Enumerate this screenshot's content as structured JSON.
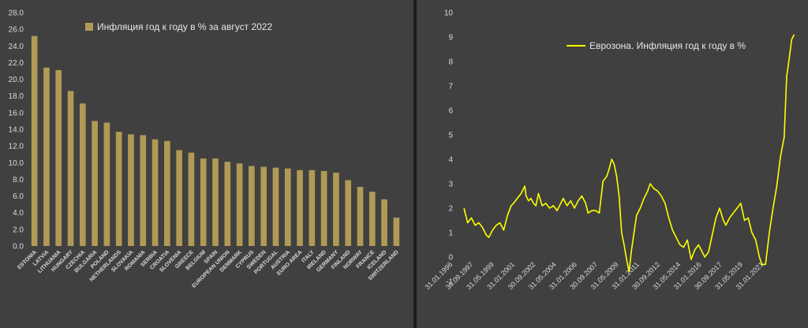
{
  "chart_data": [
    {
      "type": "bar",
      "legend": "Инфляция год к году в % за август 2022",
      "legend_position": "top-center",
      "color": "#b09a55",
      "ylim": [
        0,
        28
      ],
      "yticks": [
        "0.0",
        "2.0",
        "4.0",
        "6.0",
        "8.0",
        "10.0",
        "12.0",
        "14.0",
        "16.0",
        "18.0",
        "20.0",
        "22.0",
        "24.0",
        "26.0",
        "28.0"
      ],
      "grid": false,
      "categories": [
        "ESTONIA",
        "LATVIA",
        "LITHUANIA",
        "HUNGARY",
        "CZECHIA",
        "BULGARIA",
        "POLAND",
        "NETHERLANDS",
        "SLOVAKIA",
        "ROMANIA",
        "SERBIA",
        "CROATIA",
        "SLOVENIA",
        "GREECE",
        "BELGIUM",
        "SPAIN",
        "EUROPEAN UNION",
        "DENMARK",
        "CYPRUS",
        "SWEDEN",
        "PORTUGAL",
        "AUSTRIA",
        "EURO AREA",
        "ITALY",
        "IRELAND",
        "GERMANY",
        "FINLAND",
        "NORWAY",
        "FRANCE",
        "ICELAND",
        "SWITZERLAND"
      ],
      "values": [
        25.2,
        21.4,
        21.1,
        18.6,
        17.1,
        15.0,
        14.8,
        13.7,
        13.4,
        13.3,
        12.8,
        12.6,
        11.5,
        11.2,
        10.5,
        10.5,
        10.1,
        9.9,
        9.6,
        9.5,
        9.4,
        9.3,
        9.1,
        9.1,
        9.0,
        8.8,
        7.9,
        7.1,
        6.5,
        5.6,
        3.4
      ]
    },
    {
      "type": "line",
      "legend": "Еврозона. Инфляция год к году в %",
      "legend_position": "top-left",
      "color": "#ffff00",
      "ylim": [
        -1,
        10
      ],
      "yticks": [
        "-1",
        "0",
        "1",
        "2",
        "3",
        "4",
        "5",
        "6",
        "7",
        "8",
        "9",
        "10"
      ],
      "grid": false,
      "xlim": [
        1996.0,
        2022.7
      ],
      "xticks": [
        "31.01.1996",
        "30.09.1997",
        "31.05.1999",
        "31.01.2001",
        "30.09.2002",
        "31.05.2004",
        "31.01.2006",
        "30.09.2007",
        "31.05.2009",
        "31.01.2011",
        "30.09.2012",
        "31.05.2014",
        "31.01.2016",
        "30.09.2017",
        "31.05.2019",
        "31.01.2021"
      ],
      "x": [
        1996.0,
        1996.3,
        1996.6,
        1996.9,
        1997.2,
        1997.5,
        1997.8,
        1998.0,
        1998.3,
        1998.6,
        1998.9,
        1999.2,
        1999.5,
        1999.8,
        2000.0,
        2000.3,
        2000.6,
        2000.9,
        2001.0,
        2001.2,
        2001.4,
        2001.6,
        2001.8,
        2002.0,
        2002.3,
        2002.6,
        2002.9,
        2003.2,
        2003.5,
        2003.8,
        2004.0,
        2004.3,
        2004.6,
        2004.9,
        2005.2,
        2005.5,
        2005.8,
        2006.0,
        2006.3,
        2006.6,
        2006.9,
        2007.2,
        2007.5,
        2007.7,
        2007.9,
        2008.1,
        2008.3,
        2008.5,
        2008.7,
        2008.9,
        2009.1,
        2009.3,
        2009.5,
        2009.7,
        2009.9,
        2010.2,
        2010.5,
        2010.8,
        2011.0,
        2011.3,
        2011.6,
        2011.9,
        2012.2,
        2012.5,
        2012.8,
        2013.1,
        2013.4,
        2013.7,
        2014.0,
        2014.3,
        2014.6,
        2014.9,
        2015.1,
        2015.4,
        2015.7,
        2016.0,
        2016.3,
        2016.6,
        2016.9,
        2017.1,
        2017.4,
        2017.7,
        2018.0,
        2018.3,
        2018.6,
        2018.9,
        2019.2,
        2019.5,
        2019.8,
        2020.0,
        2020.3,
        2020.6,
        2020.9,
        2021.2,
        2021.5,
        2021.8,
        2022.0,
        2022.2,
        2022.4,
        2022.6
      ],
      "y": [
        2.0,
        1.4,
        1.6,
        1.3,
        1.4,
        1.2,
        0.9,
        0.8,
        1.1,
        1.3,
        1.4,
        1.1,
        1.7,
        2.1,
        2.2,
        2.4,
        2.6,
        2.9,
        2.5,
        2.3,
        2.4,
        2.2,
        2.1,
        2.6,
        2.1,
        2.2,
        2.0,
        2.1,
        1.9,
        2.2,
        2.4,
        2.1,
        2.3,
        2.0,
        2.3,
        2.5,
        2.2,
        1.8,
        1.9,
        1.9,
        1.8,
        3.1,
        3.3,
        3.6,
        4.0,
        3.8,
        3.3,
        2.5,
        1.0,
        0.5,
        -0.1,
        -0.6,
        0.3,
        1.0,
        1.7,
        2.0,
        2.4,
        2.7,
        3.0,
        2.8,
        2.7,
        2.5,
        2.2,
        1.6,
        1.1,
        0.8,
        0.5,
        0.4,
        0.7,
        -0.1,
        0.3,
        0.5,
        0.3,
        0.0,
        0.2,
        0.9,
        1.6,
        2.0,
        1.5,
        1.3,
        1.6,
        1.8,
        2.0,
        2.2,
        1.5,
        1.6,
        1.0,
        0.7,
        0.0,
        -0.3,
        -0.3,
        1.0,
        2.0,
        2.9,
        4.1,
        4.9,
        7.4,
        8.1,
        8.9,
        9.1
      ]
    }
  ]
}
